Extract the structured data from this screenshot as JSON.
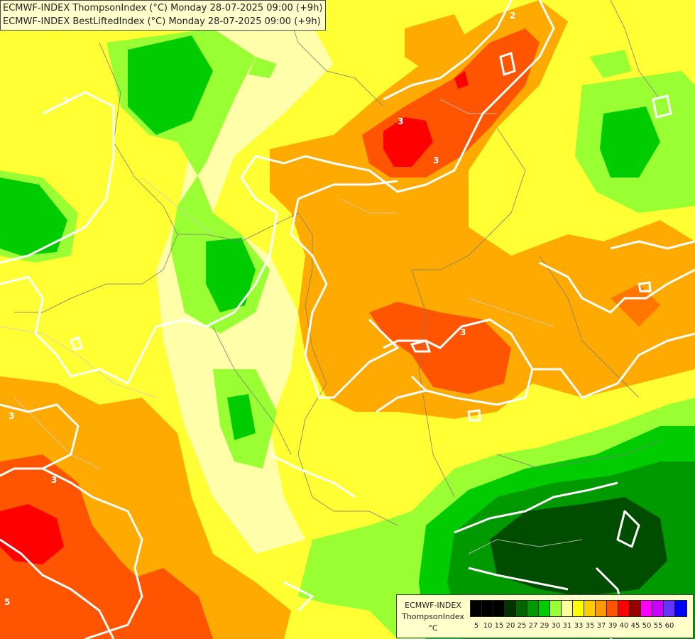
{
  "header": {
    "line1": "ECMWF-INDEX ThompsonIndex (°C) Monday 28-07-2025 09:00 (+9h)",
    "line2": "ECMWF-INDEX BestLiftedIndex (°C) Monday 28-07-2025 09:00 (+9h)"
  },
  "legend": {
    "title1": "ECMWF-INDEX",
    "title2": "ThompsonIndex",
    "unit": "°C",
    "bins": [
      {
        "label": "5",
        "color": "#000000"
      },
      {
        "label": "10",
        "color": "#000000"
      },
      {
        "label": "15",
        "color": "#000000"
      },
      {
        "label": "20",
        "color": "#003300"
      },
      {
        "label": "25",
        "color": "#006600"
      },
      {
        "label": "27",
        "color": "#009900"
      },
      {
        "label": "29",
        "color": "#00cc00"
      },
      {
        "label": "30",
        "color": "#99ff33"
      },
      {
        "label": "31",
        "color": "#ffff99"
      },
      {
        "label": "33",
        "color": "#ffff00"
      },
      {
        "label": "35",
        "color": "#ffcc00"
      },
      {
        "label": "37",
        "color": "#ff9900"
      },
      {
        "label": "39",
        "color": "#ff5500"
      },
      {
        "label": "40",
        "color": "#ff0000"
      },
      {
        "label": "45",
        "color": "#990000"
      },
      {
        "label": "50",
        "color": "#ff00ff"
      },
      {
        "label": "55",
        "color": "#cc00ff"
      },
      {
        "label": "60",
        "color": "#6633ff"
      },
      {
        "label": "",
        "color": "#0000ff"
      }
    ]
  },
  "contour_labels": [
    "2",
    "3",
    "3",
    "3",
    "3",
    "2",
    "3",
    "5"
  ]
}
